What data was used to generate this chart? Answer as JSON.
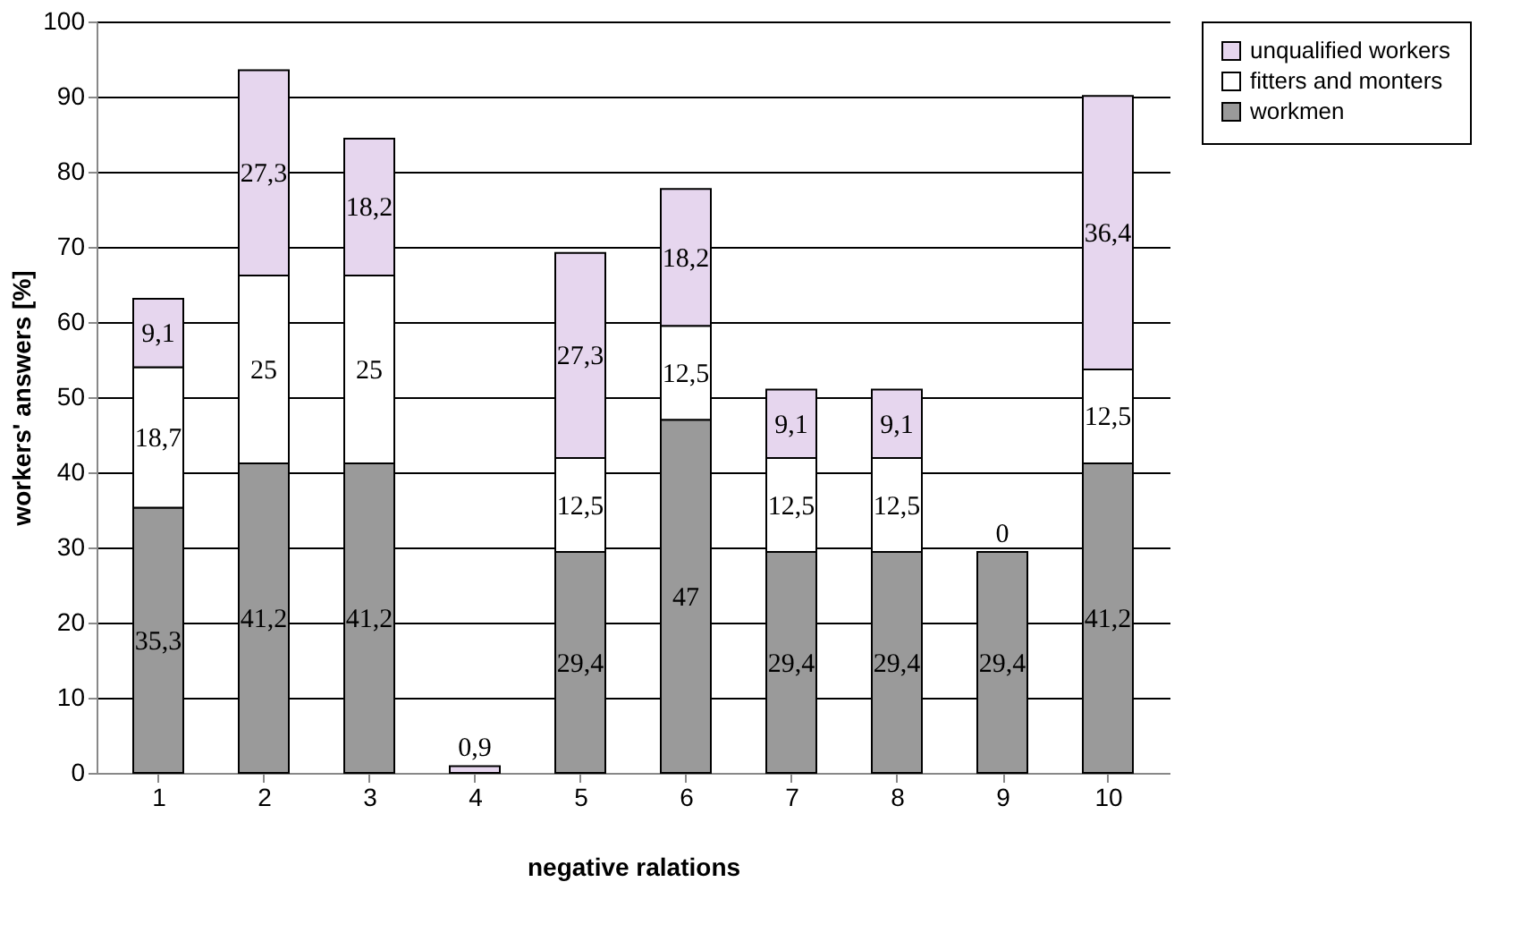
{
  "chart_data": {
    "type": "bar",
    "stacked": true,
    "xlabel": "negative ralations",
    "ylabel": "workers' answers [%]",
    "categories": [
      "1",
      "2",
      "3",
      "4",
      "5",
      "6",
      "7",
      "8",
      "9",
      "10"
    ],
    "series": [
      {
        "name": "workmen",
        "color": "#9a9a9a",
        "values": [
          35.3,
          41.2,
          41.2,
          null,
          29.4,
          47,
          29.4,
          29.4,
          29.4,
          41.2
        ],
        "value_labels": [
          "35,3",
          "41,2",
          "41,2",
          null,
          "29,4",
          "47",
          "29,4",
          "29,4",
          "29,4",
          "41,2"
        ]
      },
      {
        "name": "fitters and monters",
        "color": "#ffffff",
        "values": [
          18.7,
          25,
          25,
          null,
          12.5,
          12.5,
          12.5,
          12.5,
          null,
          12.5
        ],
        "value_labels": [
          "18,7",
          "25",
          "25",
          null,
          "12,5",
          "12,5",
          "12,5",
          "12,5",
          null,
          "12,5"
        ]
      },
      {
        "name": "unqualified workers",
        "color": "#e6d6ee",
        "values": [
          9.1,
          27.3,
          18.2,
          0.9,
          27.3,
          18.2,
          9.1,
          9.1,
          0,
          36.4
        ],
        "value_labels": [
          "9,1",
          "27,3",
          "18,2",
          "0,9",
          "27,3",
          "18,2",
          "9,1",
          "9,1",
          "0",
          "36,4"
        ]
      }
    ],
    "ylim": [
      0,
      100
    ],
    "yticks": [
      0,
      10,
      20,
      30,
      40,
      50,
      60,
      70,
      80,
      90,
      100
    ],
    "grid": "y",
    "legend": "right"
  }
}
